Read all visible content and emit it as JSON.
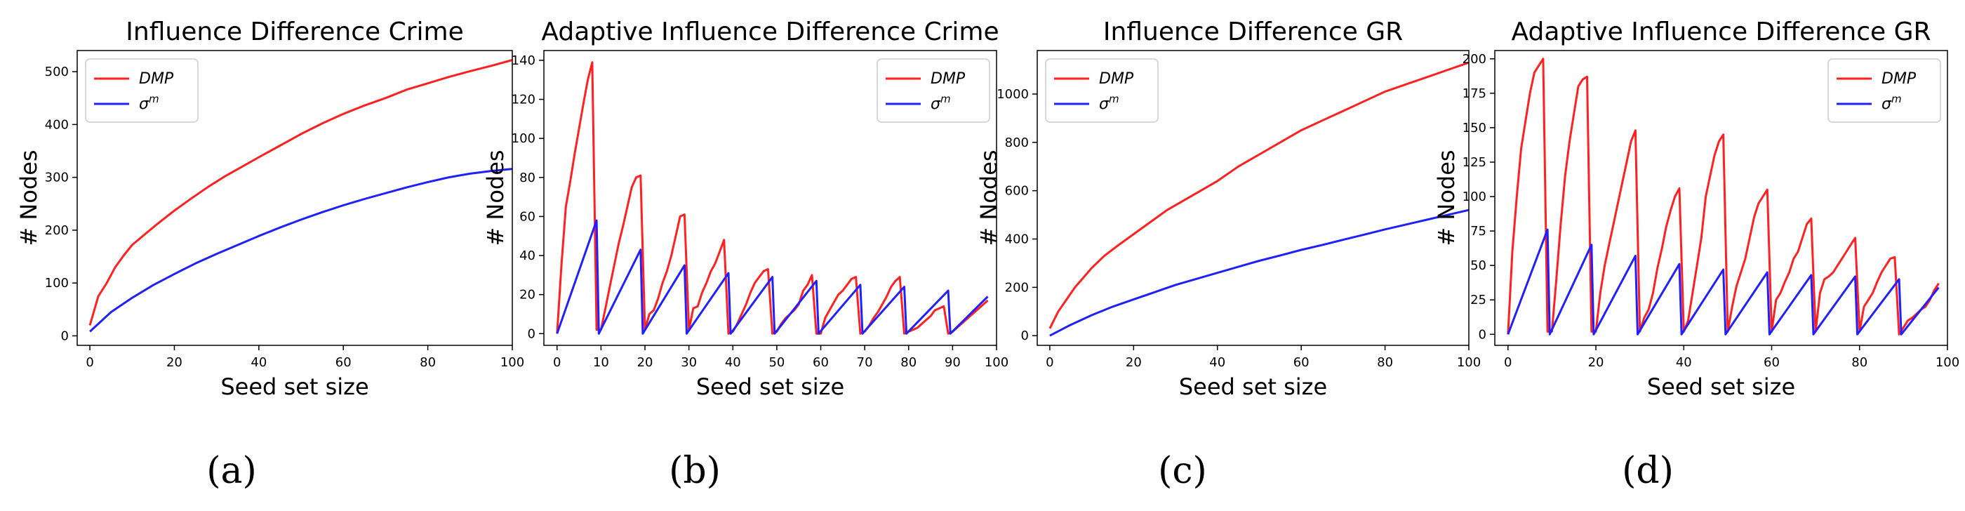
{
  "chart_data": [
    {
      "type": "line",
      "title": "Influence Difference Crime",
      "xlabel": "Seed set size",
      "ylabel": "# Nodes",
      "caption": "(a)",
      "xlim": [
        -3,
        100
      ],
      "ylim": [
        -18,
        540
      ],
      "xticks": [
        0,
        20,
        40,
        60,
        80,
        100
      ],
      "xtick_labels": [
        "0",
        "20",
        "40",
        "60",
        "80",
        "100"
      ],
      "yticks": [
        0,
        100,
        200,
        300,
        400,
        500
      ],
      "ytick_labels": [
        "0",
        "100",
        "200",
        "300",
        "400",
        "500"
      ],
      "legend": "top-left",
      "grid": false,
      "series": [
        {
          "name": "DMP",
          "color": "#ff2020",
          "x": [
            0,
            2,
            4,
            6,
            8,
            10,
            13,
            16,
            20,
            24,
            28,
            32,
            36,
            40,
            45,
            50,
            55,
            60,
            65,
            70,
            75,
            80,
            85,
            90,
            95,
            100
          ],
          "y": [
            20,
            75,
            100,
            130,
            152,
            172,
            192,
            212,
            237,
            260,
            282,
            302,
            320,
            338,
            360,
            382,
            402,
            420,
            436,
            450,
            466,
            478,
            490,
            501,
            511,
            522
          ]
        },
        {
          "name": "σm",
          "color": "#2020ff",
          "x": [
            0,
            5,
            10,
            15,
            20,
            25,
            30,
            35,
            40,
            45,
            50,
            55,
            60,
            65,
            70,
            75,
            80,
            85,
            90,
            95,
            100
          ],
          "y": [
            8,
            45,
            72,
            96,
            117,
            137,
            155,
            172,
            189,
            205,
            220,
            234,
            247,
            259,
            270,
            281,
            291,
            300,
            307,
            312,
            316
          ]
        }
      ]
    },
    {
      "type": "line",
      "title": "Adaptive Influence Difference Crime",
      "xlabel": "Seed set size",
      "ylabel": "# Nodes",
      "caption": "(b)",
      "xlim": [
        -3,
        100
      ],
      "ylim": [
        -6,
        145
      ],
      "xticks": [
        0,
        10,
        20,
        30,
        40,
        50,
        60,
        70,
        80,
        90,
        100
      ],
      "xtick_labels": [
        "0",
        "10",
        "20",
        "30",
        "40",
        "50",
        "60",
        "70",
        "80",
        "90",
        "100"
      ],
      "yticks": [
        0,
        20,
        40,
        60,
        80,
        100,
        120,
        140
      ],
      "ytick_labels": [
        "0",
        "20",
        "40",
        "60",
        "80",
        "100",
        "120",
        "140"
      ],
      "legend": "top-right",
      "grid": false,
      "series": [
        {
          "name": "DMP",
          "color": "#ff2020",
          "x": [
            0,
            1,
            2,
            3,
            4,
            5,
            6,
            7,
            8,
            9,
            10,
            11,
            12,
            13,
            14,
            15,
            16,
            17,
            18,
            19,
            20,
            21,
            22,
            23,
            24,
            25,
            26,
            27,
            28,
            29,
            30,
            31,
            32,
            33,
            34,
            35,
            36,
            37,
            38,
            39,
            40,
            41,
            42,
            43,
            44,
            45,
            46,
            47,
            48,
            49,
            50,
            51,
            52,
            53,
            54,
            55,
            56,
            57,
            58,
            59,
            60,
            61,
            62,
            63,
            64,
            65,
            66,
            67,
            68,
            69,
            70,
            71,
            72,
            73,
            74,
            75,
            76,
            77,
            78,
            79,
            80,
            81,
            82,
            83,
            84,
            85,
            86,
            87,
            88,
            89,
            90,
            91,
            92,
            93,
            94,
            95,
            96,
            97,
            98
          ],
          "y": [
            0,
            35,
            65,
            78,
            92,
            105,
            118,
            130,
            139,
            2,
            2,
            13,
            24,
            35,
            46,
            55,
            65,
            75,
            80,
            81,
            2,
            10,
            12,
            18,
            26,
            32,
            40,
            50,
            60,
            61,
            2,
            13,
            14,
            21,
            26,
            32,
            36,
            42,
            48,
            0,
            1,
            5,
            10,
            15,
            21,
            26,
            29,
            32,
            33,
            0,
            1,
            5,
            8,
            10,
            12,
            15,
            22,
            25,
            30,
            0,
            0,
            8,
            12,
            16,
            20,
            22,
            25,
            28,
            29,
            0,
            1,
            4,
            8,
            11,
            15,
            19,
            24,
            27,
            29,
            0,
            1,
            2,
            3,
            5,
            7,
            9,
            12,
            13,
            14,
            0,
            1,
            3,
            5,
            7,
            9,
            11,
            13,
            15,
            17
          ]
        },
        {
          "name": "σm",
          "color": "#2020ff",
          "x": [
            0,
            9,
            9.5,
            19,
            19.5,
            29,
            29.5,
            39,
            39.5,
            49,
            49.5,
            59,
            59.5,
            69,
            69.5,
            79,
            79.5,
            89,
            89.5,
            98
          ],
          "y": [
            0,
            58,
            0,
            43,
            0,
            35,
            0,
            31,
            0,
            29,
            0,
            27,
            0,
            25,
            0,
            24,
            0,
            22,
            0,
            19
          ]
        }
      ]
    },
    {
      "type": "line",
      "title": "Influence Difference GR",
      "xlabel": "Seed set size",
      "ylabel": "# Nodes",
      "caption": "(c)",
      "xlim": [
        -3,
        100
      ],
      "ylim": [
        -40,
        1180
      ],
      "xticks": [
        0,
        20,
        40,
        60,
        80,
        100
      ],
      "xtick_labels": [
        "0",
        "20",
        "40",
        "60",
        "80",
        "100"
      ],
      "yticks": [
        0,
        200,
        400,
        600,
        800,
        1000
      ],
      "ytick_labels": [
        "0",
        "200",
        "400",
        "600",
        "800",
        "1000"
      ],
      "legend": "top-left",
      "grid": false,
      "series": [
        {
          "name": "DMP",
          "color": "#ff2020",
          "x": [
            0,
            2,
            4,
            6,
            8,
            10,
            13,
            16,
            20,
            24,
            28,
            32,
            36,
            40,
            45,
            50,
            55,
            60,
            65,
            70,
            75,
            80,
            85,
            90,
            95,
            100
          ],
          "y": [
            30,
            100,
            150,
            200,
            240,
            280,
            330,
            370,
            420,
            470,
            520,
            560,
            600,
            640,
            700,
            750,
            800,
            850,
            890,
            930,
            970,
            1010,
            1040,
            1070,
            1100,
            1130
          ]
        },
        {
          "name": "σm",
          "color": "#2020ff",
          "x": [
            0,
            5,
            10,
            15,
            20,
            25,
            30,
            35,
            40,
            45,
            50,
            55,
            60,
            65,
            70,
            75,
            80,
            85,
            90,
            95,
            100
          ],
          "y": [
            0,
            45,
            85,
            120,
            150,
            180,
            210,
            235,
            260,
            285,
            310,
            332,
            355,
            375,
            397,
            418,
            440,
            460,
            480,
            500,
            520
          ]
        }
      ]
    },
    {
      "type": "line",
      "title": "Adaptive Influence Difference GR",
      "xlabel": "Seed set size",
      "ylabel": "# Nodes",
      "caption": "(d)",
      "xlim": [
        -3,
        100
      ],
      "ylim": [
        -8,
        206
      ],
      "xticks": [
        0,
        20,
        40,
        60,
        80,
        100
      ],
      "xtick_labels": [
        "0",
        "20",
        "40",
        "60",
        "80",
        "100"
      ],
      "yticks": [
        0,
        25,
        50,
        75,
        100,
        125,
        150,
        175,
        200
      ],
      "ytick_labels": [
        "0",
        "25",
        "50",
        "75",
        "100",
        "125",
        "150",
        "175",
        "200"
      ],
      "legend": "top-right",
      "grid": false,
      "series": [
        {
          "name": "DMP",
          "color": "#ff2020",
          "x": [
            0,
            1,
            2,
            3,
            4,
            5,
            6,
            7,
            8,
            9,
            10,
            11,
            12,
            13,
            14,
            15,
            16,
            17,
            18,
            19,
            20,
            21,
            22,
            23,
            24,
            25,
            26,
            27,
            28,
            29,
            30,
            31,
            32,
            33,
            34,
            35,
            36,
            37,
            38,
            39,
            40,
            41,
            42,
            43,
            44,
            45,
            46,
            47,
            48,
            49,
            50,
            51,
            52,
            53,
            54,
            55,
            56,
            57,
            58,
            59,
            60,
            61,
            62,
            63,
            64,
            65,
            66,
            67,
            68,
            69,
            70,
            71,
            72,
            73,
            74,
            75,
            76,
            77,
            78,
            79,
            80,
            81,
            82,
            83,
            84,
            85,
            86,
            87,
            88,
            89,
            90,
            91,
            92,
            93,
            94,
            95,
            96,
            97,
            98
          ],
          "y": [
            0,
            60,
            100,
            135,
            155,
            175,
            190,
            195,
            200,
            2,
            2,
            40,
            80,
            115,
            140,
            160,
            180,
            185,
            187,
            2,
            2,
            30,
            50,
            65,
            80,
            95,
            110,
            125,
            140,
            148,
            2,
            12,
            18,
            30,
            48,
            62,
            78,
            90,
            100,
            106,
            2,
            10,
            30,
            50,
            70,
            100,
            115,
            130,
            140,
            145,
            2,
            20,
            35,
            45,
            55,
            70,
            85,
            95,
            100,
            105,
            2,
            25,
            30,
            38,
            45,
            55,
            60,
            70,
            80,
            84,
            2,
            30,
            40,
            42,
            45,
            50,
            55,
            60,
            65,
            70,
            2,
            20,
            25,
            30,
            38,
            45,
            50,
            55,
            56,
            0,
            5,
            10,
            12,
            15,
            18,
            20,
            25,
            32,
            37
          ]
        },
        {
          "name": "σm",
          "color": "#2020ff",
          "x": [
            0,
            9,
            9.5,
            19,
            19.5,
            29,
            29.5,
            39,
            39.5,
            49,
            49.5,
            59,
            59.5,
            69,
            69.5,
            79,
            79.5,
            89,
            89.5,
            98
          ],
          "y": [
            0,
            76,
            0,
            65,
            0,
            57,
            0,
            51,
            0,
            47,
            0,
            45,
            0,
            43,
            0,
            42,
            0,
            40,
            0,
            34
          ]
        }
      ]
    }
  ]
}
